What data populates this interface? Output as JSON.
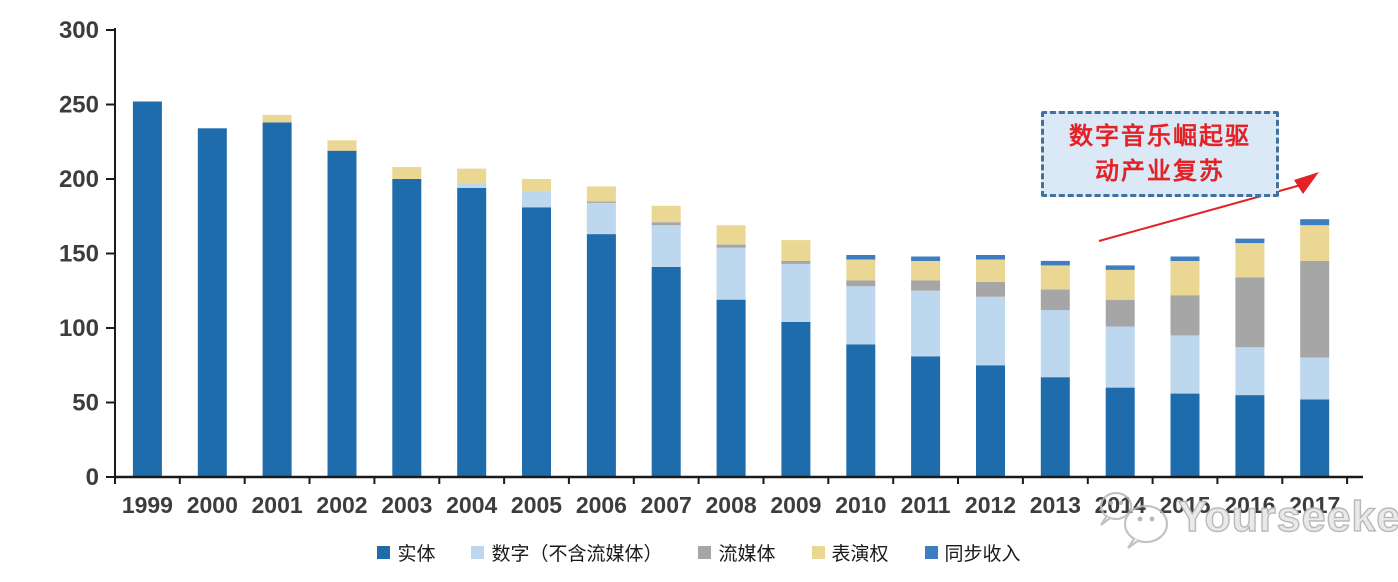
{
  "chart_data": {
    "type": "bar",
    "stacked": true,
    "title": "",
    "xlabel": "",
    "ylabel": "",
    "grid": false,
    "legend_position": "bottom",
    "ylim": [
      0,
      300
    ],
    "yticks": [
      0,
      50,
      100,
      150,
      200,
      250,
      300
    ],
    "x": [
      "1999",
      "2000",
      "2001",
      "2002",
      "2003",
      "2004",
      "2005",
      "2006",
      "2007",
      "2008",
      "2009",
      "2010",
      "2011",
      "2012",
      "2013",
      "2014",
      "2015",
      "2016",
      "2017"
    ],
    "series": [
      {
        "name": "实体",
        "color": "#1E6CAB",
        "values": [
          252,
          234,
          238,
          219,
          200,
          194,
          181,
          163,
          141,
          119,
          104,
          89,
          81,
          75,
          67,
          60,
          56,
          55,
          52
        ]
      },
      {
        "name": "数字（不含流媒体）",
        "color": "#BDD7EE",
        "values": [
          0,
          0,
          0,
          0,
          0,
          3,
          11,
          21,
          28,
          35,
          39,
          39,
          44,
          46,
          45,
          41,
          39,
          32,
          28
        ]
      },
      {
        "name": "流媒体",
        "color": "#A6A6A6",
        "values": [
          0,
          0,
          0,
          0,
          0,
          0,
          0,
          1,
          2,
          2,
          2,
          4,
          7,
          10,
          14,
          18,
          27,
          47,
          65
        ]
      },
      {
        "name": "表演权",
        "color": "#EAD794",
        "values": [
          0,
          0,
          5,
          7,
          8,
          10,
          8,
          10,
          11,
          13,
          14,
          14,
          13,
          15,
          16,
          20,
          23,
          23,
          24
        ]
      },
      {
        "name": "同步收入",
        "color": "#3E7DC1",
        "values": [
          0,
          0,
          0,
          0,
          0,
          0,
          0,
          0,
          0,
          0,
          0,
          3,
          3,
          3,
          3,
          3,
          3,
          3,
          4
        ]
      }
    ],
    "annotation": {
      "line1": "数字音乐崛起驱",
      "line2": "动产业复苏",
      "color": "#e32226"
    }
  },
  "watermark": {
    "brand": "Yourseeker"
  },
  "colors": {
    "axis": "#1a1a1a",
    "axis_text": "#3d3d3d",
    "annotation_bg": "#dbe8f6",
    "annotation_border": "#41719c",
    "watermark_gray": "#b9b9b9"
  }
}
